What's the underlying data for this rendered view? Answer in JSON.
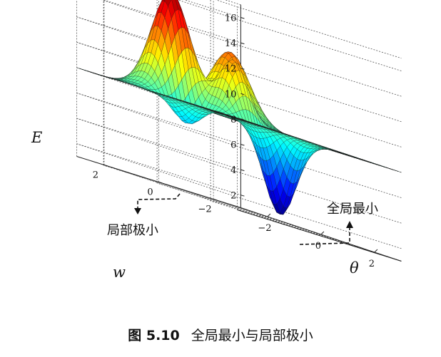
{
  "chart_data": {
    "type": "surface",
    "z_label": "E",
    "x_label": "θ",
    "y_label": "w",
    "z_ticks": [
      2,
      4,
      6,
      8,
      10,
      12,
      14,
      16
    ],
    "x_ticks": [
      -2,
      0,
      2
    ],
    "y_ticks": [
      2,
      0,
      -2
    ],
    "z_range": [
      1,
      17
    ],
    "x_range": [
      -3,
      3
    ],
    "y_range": [
      -3,
      3
    ],
    "base_level": 8,
    "extrema": [
      {
        "type": "max",
        "x": -1.0,
        "y": 1.5,
        "z": 16.5
      },
      {
        "type": "max",
        "x": 1.0,
        "y": 1.3,
        "z": 13.2
      },
      {
        "type": "max",
        "x": 0.0,
        "y": 0.2,
        "z": 12.5
      },
      {
        "type": "min",
        "x": 0.2,
        "y": -1.3,
        "z": 1.5
      },
      {
        "type": "min",
        "x": -1.4,
        "y": 0.6,
        "z": 5.5
      }
    ],
    "annotations": [
      {
        "label": "局部极小",
        "target": "local-min"
      },
      {
        "label": "全局最小",
        "target": "global-min"
      }
    ],
    "colormap": "jet",
    "grid": true
  },
  "caption": {
    "number": "图 5.10",
    "text": "全局最小与局部极小"
  }
}
